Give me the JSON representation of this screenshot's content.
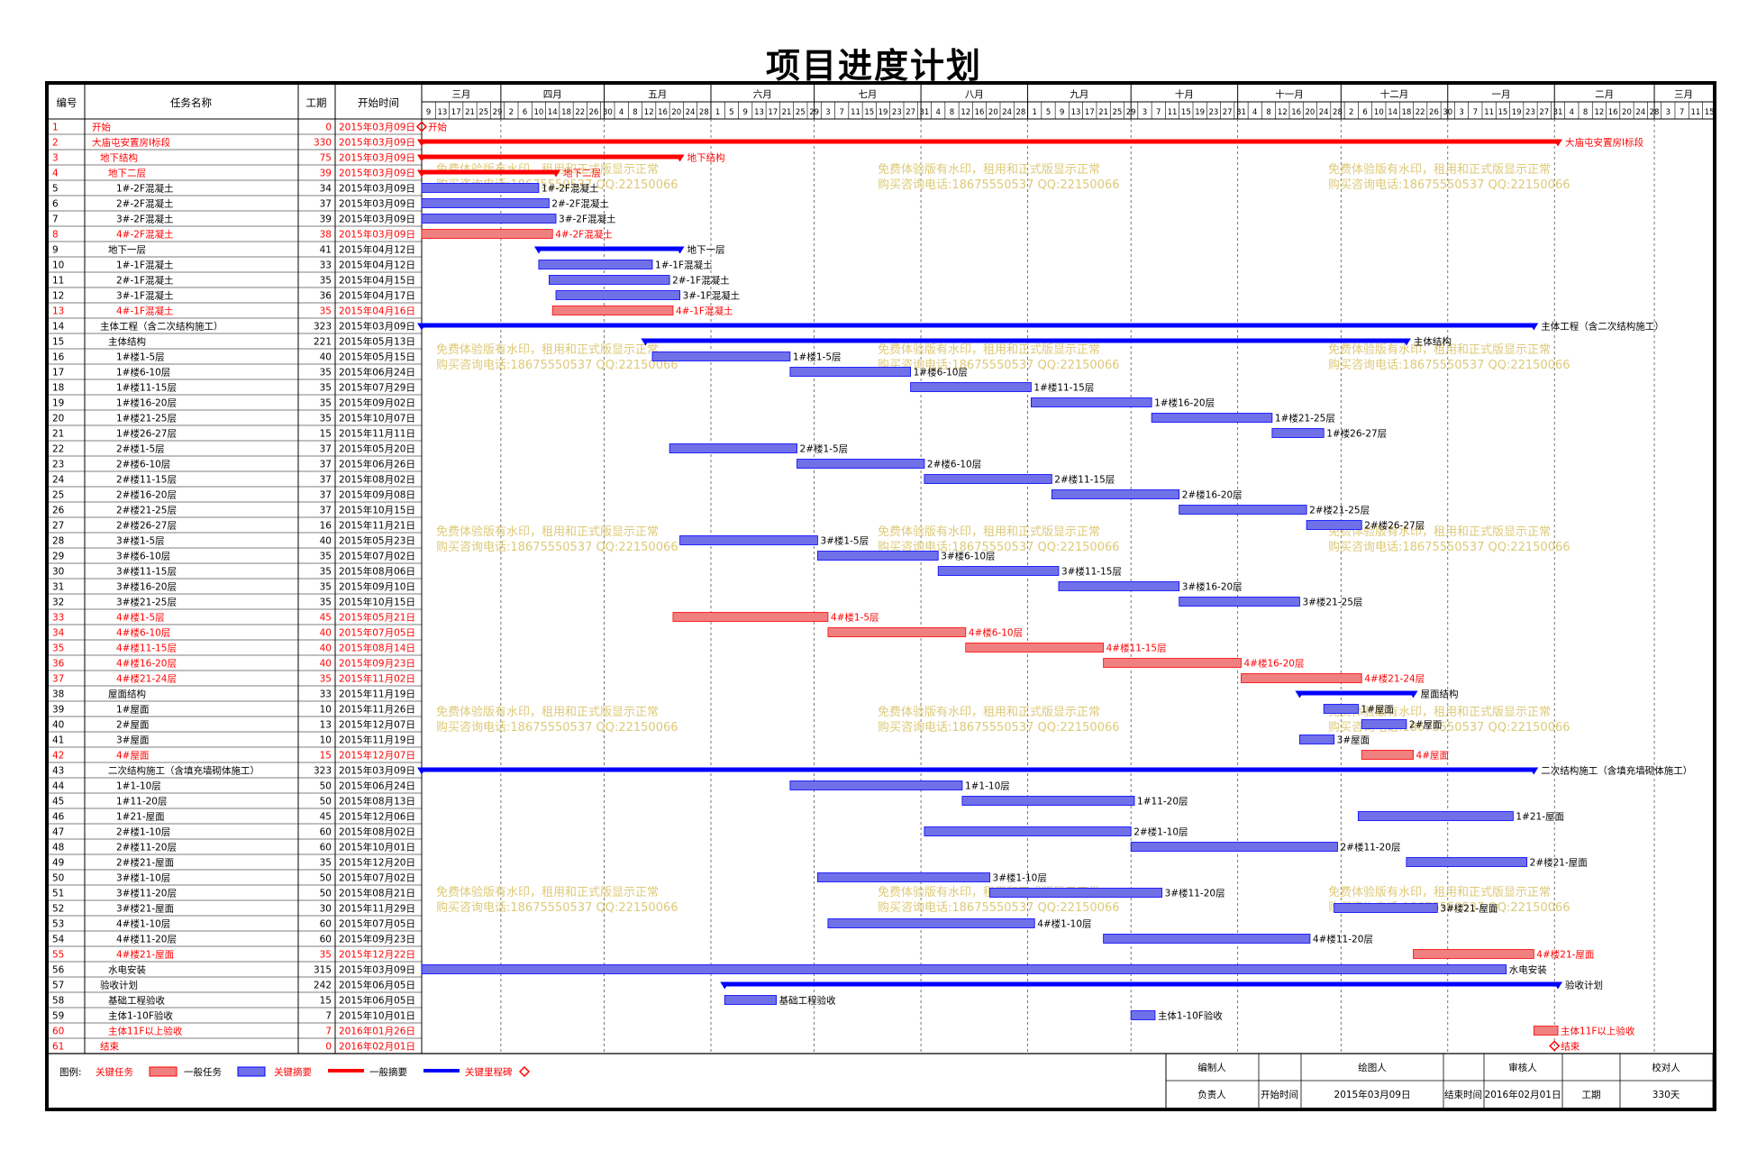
{
  "title": "项目进度计划",
  "headers": {
    "id": "编号",
    "name": "任务名称",
    "duration": "工期",
    "start": "开始时间"
  },
  "months": [
    "三月",
    "四月",
    "五月",
    "六月",
    "七月",
    "八月",
    "九月",
    "十月",
    "十一月",
    "十二月",
    "一月",
    "二月",
    "三月"
  ],
  "month_days": [
    [
      9,
      13,
      17,
      21,
      25,
      29
    ],
    [
      2,
      6,
      10,
      14,
      18,
      22,
      26,
      30
    ],
    [
      4,
      8,
      12,
      16,
      20,
      24,
      28
    ],
    [
      1,
      5,
      9,
      13,
      17,
      21,
      25,
      29
    ],
    [
      3,
      7,
      11,
      15,
      19,
      23,
      27,
      31
    ],
    [
      4,
      8,
      12,
      16,
      20,
      24,
      28
    ],
    [
      1,
      5,
      9,
      13,
      17,
      21,
      25,
      29
    ],
    [
      3,
      7,
      11,
      15,
      19,
      23,
      27,
      31
    ],
    [
      4,
      8,
      12,
      16,
      20,
      24,
      28
    ],
    [
      2,
      6,
      10,
      14,
      18,
      22,
      26,
      30
    ],
    [
      3,
      7,
      11,
      15,
      19,
      23,
      27,
      31
    ],
    [
      4,
      8,
      12,
      16,
      20,
      24,
      28
    ],
    [
      3,
      7,
      11,
      15
    ]
  ],
  "colors": {
    "critical": "#ff0000",
    "critical_fill": "#f08080",
    "normal_fill": "#7070e8",
    "normal": "#0000ff",
    "watermark": "#d8c060"
  },
  "watermark": {
    "line1": "免费体验版有水印，租用和正式版显示正常",
    "line2": "购买咨询电话:18675550537 QQ:22150066"
  },
  "tasks": [
    {
      "id": "1",
      "name": "开始",
      "dur": "0",
      "start": "2015年03月09日",
      "crit": true,
      "lvl": 0,
      "type": "milestone",
      "label": "开始"
    },
    {
      "id": "2",
      "name": "大庙屯安置房Ⅰ标段",
      "dur": "330",
      "start": "2015年03月09日",
      "crit": true,
      "lvl": 0,
      "type": "summary",
      "label": "大庙屯安置房Ⅰ标段"
    },
    {
      "id": "3",
      "name": "地下结构",
      "dur": "75",
      "start": "2015年03月09日",
      "crit": true,
      "lvl": 1,
      "type": "summary",
      "label": "地下结构"
    },
    {
      "id": "4",
      "name": "地下二层",
      "dur": "39",
      "start": "2015年03月09日",
      "crit": true,
      "lvl": 2,
      "type": "summary",
      "label": "地下二层"
    },
    {
      "id": "5",
      "name": "1#-2F混凝土",
      "dur": "34",
      "start": "2015年03月09日",
      "crit": false,
      "lvl": 3,
      "type": "task",
      "label": "1#-2F混凝土"
    },
    {
      "id": "6",
      "name": "2#-2F混凝土",
      "dur": "37",
      "start": "2015年03月09日",
      "crit": false,
      "lvl": 3,
      "type": "task",
      "label": "2#-2F混凝土"
    },
    {
      "id": "7",
      "name": "3#-2F混凝土",
      "dur": "39",
      "start": "2015年03月09日",
      "crit": false,
      "lvl": 3,
      "type": "task",
      "label": "3#-2F混凝土"
    },
    {
      "id": "8",
      "name": "4#-2F混凝土",
      "dur": "38",
      "start": "2015年03月09日",
      "crit": true,
      "lvl": 3,
      "type": "task",
      "label": "4#-2F混凝土"
    },
    {
      "id": "9",
      "name": "地下一层",
      "dur": "41",
      "start": "2015年04月12日",
      "crit": false,
      "lvl": 2,
      "type": "summary",
      "label": "地下一层"
    },
    {
      "id": "10",
      "name": "1#-1F混凝土",
      "dur": "33",
      "start": "2015年04月12日",
      "crit": false,
      "lvl": 3,
      "type": "task",
      "label": "1#-1F混凝土"
    },
    {
      "id": "11",
      "name": "2#-1F混凝土",
      "dur": "35",
      "start": "2015年04月15日",
      "crit": false,
      "lvl": 3,
      "type": "task",
      "label": "2#-1F混凝土"
    },
    {
      "id": "12",
      "name": "3#-1F混凝土",
      "dur": "36",
      "start": "2015年04月17日",
      "crit": false,
      "lvl": 3,
      "type": "task",
      "label": "3#-1F混凝土"
    },
    {
      "id": "13",
      "name": "4#-1F混凝土",
      "dur": "35",
      "start": "2015年04月16日",
      "crit": true,
      "lvl": 3,
      "type": "task",
      "label": "4#-1F混凝土"
    },
    {
      "id": "14",
      "name": "主体工程（含二次结构施工）",
      "dur": "323",
      "start": "2015年03月09日",
      "crit": false,
      "lvl": 1,
      "type": "summary",
      "label": "主体工程（含二次结构施工）"
    },
    {
      "id": "15",
      "name": "主体结构",
      "dur": "221",
      "start": "2015年05月13日",
      "crit": false,
      "lvl": 2,
      "type": "summary",
      "label": "主体结构"
    },
    {
      "id": "16",
      "name": "1#楼1-5层",
      "dur": "40",
      "start": "2015年05月15日",
      "crit": false,
      "lvl": 3,
      "type": "task",
      "label": "1#楼1-5层"
    },
    {
      "id": "17",
      "name": "1#楼6-10层",
      "dur": "35",
      "start": "2015年06月24日",
      "crit": false,
      "lvl": 3,
      "type": "task",
      "label": "1#楼6-10层"
    },
    {
      "id": "18",
      "name": "1#楼11-15层",
      "dur": "35",
      "start": "2015年07月29日",
      "crit": false,
      "lvl": 3,
      "type": "task",
      "label": "1#楼11-15层"
    },
    {
      "id": "19",
      "name": "1#楼16-20层",
      "dur": "35",
      "start": "2015年09月02日",
      "crit": false,
      "lvl": 3,
      "type": "task",
      "label": "1#楼16-20层"
    },
    {
      "id": "20",
      "name": "1#楼21-25层",
      "dur": "35",
      "start": "2015年10月07日",
      "crit": false,
      "lvl": 3,
      "type": "task",
      "label": "1#楼21-25层"
    },
    {
      "id": "21",
      "name": "1#楼26-27层",
      "dur": "15",
      "start": "2015年11月11日",
      "crit": false,
      "lvl": 3,
      "type": "task",
      "label": "1#楼26-27层"
    },
    {
      "id": "22",
      "name": "2#楼1-5层",
      "dur": "37",
      "start": "2015年05月20日",
      "crit": false,
      "lvl": 3,
      "type": "task",
      "label": "2#楼1-5层"
    },
    {
      "id": "23",
      "name": "2#楼6-10层",
      "dur": "37",
      "start": "2015年06月26日",
      "crit": false,
      "lvl": 3,
      "type": "task",
      "label": "2#楼6-10层"
    },
    {
      "id": "24",
      "name": "2#楼11-15层",
      "dur": "37",
      "start": "2015年08月02日",
      "crit": false,
      "lvl": 3,
      "type": "task",
      "label": "2#楼11-15层"
    },
    {
      "id": "25",
      "name": "2#楼16-20层",
      "dur": "37",
      "start": "2015年09月08日",
      "crit": false,
      "lvl": 3,
      "type": "task",
      "label": "2#楼16-20层"
    },
    {
      "id": "26",
      "name": "2#楼21-25层",
      "dur": "37",
      "start": "2015年10月15日",
      "crit": false,
      "lvl": 3,
      "type": "task",
      "label": "2#楼21-25层"
    },
    {
      "id": "27",
      "name": "2#楼26-27层",
      "dur": "16",
      "start": "2015年11月21日",
      "crit": false,
      "lvl": 3,
      "type": "task",
      "label": "2#楼26-27层"
    },
    {
      "id": "28",
      "name": "3#楼1-5层",
      "dur": "40",
      "start": "2015年05月23日",
      "crit": false,
      "lvl": 3,
      "type": "task",
      "label": "3#楼1-5层"
    },
    {
      "id": "29",
      "name": "3#楼6-10层",
      "dur": "35",
      "start": "2015年07月02日",
      "crit": false,
      "lvl": 3,
      "type": "task",
      "label": "3#楼6-10层"
    },
    {
      "id": "30",
      "name": "3#楼11-15层",
      "dur": "35",
      "start": "2015年08月06日",
      "crit": false,
      "lvl": 3,
      "type": "task",
      "label": "3#楼11-15层"
    },
    {
      "id": "31",
      "name": "3#楼16-20层",
      "dur": "35",
      "start": "2015年09月10日",
      "crit": false,
      "lvl": 3,
      "type": "task",
      "label": "3#楼16-20层"
    },
    {
      "id": "32",
      "name": "3#楼21-25层",
      "dur": "35",
      "start": "2015年10月15日",
      "crit": false,
      "lvl": 3,
      "type": "task",
      "label": "3#楼21-25层"
    },
    {
      "id": "33",
      "name": "4#楼1-5层",
      "dur": "45",
      "start": "2015年05月21日",
      "crit": true,
      "lvl": 3,
      "type": "task",
      "label": "4#楼1-5层"
    },
    {
      "id": "34",
      "name": "4#楼6-10层",
      "dur": "40",
      "start": "2015年07月05日",
      "crit": true,
      "lvl": 3,
      "type": "task",
      "label": "4#楼6-10层"
    },
    {
      "id": "35",
      "name": "4#楼11-15层",
      "dur": "40",
      "start": "2015年08月14日",
      "crit": true,
      "lvl": 3,
      "type": "task",
      "label": "4#楼11-15层"
    },
    {
      "id": "36",
      "name": "4#楼16-20层",
      "dur": "40",
      "start": "2015年09月23日",
      "crit": true,
      "lvl": 3,
      "type": "task",
      "label": "4#楼16-20层"
    },
    {
      "id": "37",
      "name": "4#楼21-24层",
      "dur": "35",
      "start": "2015年11月02日",
      "crit": true,
      "lvl": 3,
      "type": "task",
      "label": "4#楼21-24层"
    },
    {
      "id": "38",
      "name": "屋面结构",
      "dur": "33",
      "start": "2015年11月19日",
      "crit": false,
      "lvl": 2,
      "type": "summary",
      "label": "屋面结构"
    },
    {
      "id": "39",
      "name": "1#屋面",
      "dur": "10",
      "start": "2015年11月26日",
      "crit": false,
      "lvl": 3,
      "type": "task",
      "label": "1#屋面"
    },
    {
      "id": "40",
      "name": "2#屋面",
      "dur": "13",
      "start": "2015年12月07日",
      "crit": false,
      "lvl": 3,
      "type": "task",
      "label": "2#屋面"
    },
    {
      "id": "41",
      "name": "3#屋面",
      "dur": "10",
      "start": "2015年11月19日",
      "crit": false,
      "lvl": 3,
      "type": "task",
      "label": "3#屋面"
    },
    {
      "id": "42",
      "name": "4#屋面",
      "dur": "15",
      "start": "2015年12月07日",
      "crit": true,
      "lvl": 3,
      "type": "task",
      "label": "4#屋面"
    },
    {
      "id": "43",
      "name": "二次结构施工（含填充墙砌体施工）",
      "dur": "323",
      "start": "2015年03月09日",
      "crit": false,
      "lvl": 2,
      "type": "summary",
      "label": "二次结构施工（含填充墙砌体施工）"
    },
    {
      "id": "44",
      "name": "1#1-10层",
      "dur": "50",
      "start": "2015年06月24日",
      "crit": false,
      "lvl": 3,
      "type": "task",
      "label": "1#1-10层"
    },
    {
      "id": "45",
      "name": "1#11-20层",
      "dur": "50",
      "start": "2015年08月13日",
      "crit": false,
      "lvl": 3,
      "type": "task",
      "label": "1#11-20层"
    },
    {
      "id": "46",
      "name": "1#21-屋面",
      "dur": "45",
      "start": "2015年12月06日",
      "crit": false,
      "lvl": 3,
      "type": "task",
      "label": "1#21-屋面"
    },
    {
      "id": "47",
      "name": "2#楼1-10层",
      "dur": "60",
      "start": "2015年08月02日",
      "crit": false,
      "lvl": 3,
      "type": "task",
      "label": "2#楼1-10层"
    },
    {
      "id": "48",
      "name": "2#楼11-20层",
      "dur": "60",
      "start": "2015年10月01日",
      "crit": false,
      "lvl": 3,
      "type": "task",
      "label": "2#楼11-20层"
    },
    {
      "id": "49",
      "name": "2#楼21-屋面",
      "dur": "35",
      "start": "2015年12月20日",
      "crit": false,
      "lvl": 3,
      "type": "task",
      "label": "2#楼21-屋面"
    },
    {
      "id": "50",
      "name": "3#楼1-10层",
      "dur": "50",
      "start": "2015年07月02日",
      "crit": false,
      "lvl": 3,
      "type": "task",
      "label": "3#楼1-10层"
    },
    {
      "id": "51",
      "name": "3#楼11-20层",
      "dur": "50",
      "start": "2015年08月21日",
      "crit": false,
      "lvl": 3,
      "type": "task",
      "label": "3#楼11-20层"
    },
    {
      "id": "52",
      "name": "3#楼21-屋面",
      "dur": "30",
      "start": "2015年11月29日",
      "crit": false,
      "lvl": 3,
      "type": "task",
      "label": "3#楼21-屋面"
    },
    {
      "id": "53",
      "name": "4#楼1-10层",
      "dur": "60",
      "start": "2015年07月05日",
      "crit": false,
      "lvl": 3,
      "type": "task",
      "label": "4#楼1-10层"
    },
    {
      "id": "54",
      "name": "4#楼11-20层",
      "dur": "60",
      "start": "2015年09月23日",
      "crit": false,
      "lvl": 3,
      "type": "task",
      "label": "4#楼11-20层"
    },
    {
      "id": "55",
      "name": "4#楼21-屋面",
      "dur": "35",
      "start": "2015年12月22日",
      "crit": true,
      "lvl": 3,
      "type": "task",
      "label": "4#楼21-屋面"
    },
    {
      "id": "56",
      "name": "水电安装",
      "dur": "315",
      "start": "2015年03月09日",
      "crit": false,
      "lvl": 2,
      "type": "task",
      "label": "水电安装"
    },
    {
      "id": "57",
      "name": "验收计划",
      "dur": "242",
      "start": "2015年06月05日",
      "crit": false,
      "lvl": 1,
      "type": "summary",
      "label": "验收计划"
    },
    {
      "id": "58",
      "name": "基础工程验收",
      "dur": "15",
      "start": "2015年06月05日",
      "crit": false,
      "lvl": 2,
      "type": "task",
      "label": "基础工程验收"
    },
    {
      "id": "59",
      "name": "主体1-10F验收",
      "dur": "7",
      "start": "2015年10月01日",
      "crit": false,
      "lvl": 2,
      "type": "task",
      "label": "主体1-10F验收"
    },
    {
      "id": "60",
      "name": "主体11F以上验收",
      "dur": "7",
      "start": "2016年01月26日",
      "crit": true,
      "lvl": 2,
      "type": "task",
      "label": "主体11F以上验收"
    },
    {
      "id": "61",
      "name": "结束",
      "dur": "0",
      "start": "2016年02月01日",
      "crit": true,
      "lvl": 1,
      "type": "milestone",
      "label": "结束"
    }
  ],
  "legend": {
    "label": "图例:",
    "critical_task": "关键任务",
    "normal_task": "一般任务",
    "critical_summary": "关键摘要",
    "normal_summary": "一般摘要",
    "critical_milestone": "关键里程碑"
  },
  "footer": {
    "editor": "编制人",
    "drawer": "绘图人",
    "reviewer": "审核人",
    "checker": "校对人",
    "owner": "负责人",
    "start_label": "开始时间",
    "start_value": "2015年03月09日",
    "end_label": "结束时间",
    "end_value": "2016年02月01日",
    "dur_label": "工期",
    "dur_value": "330天"
  }
}
